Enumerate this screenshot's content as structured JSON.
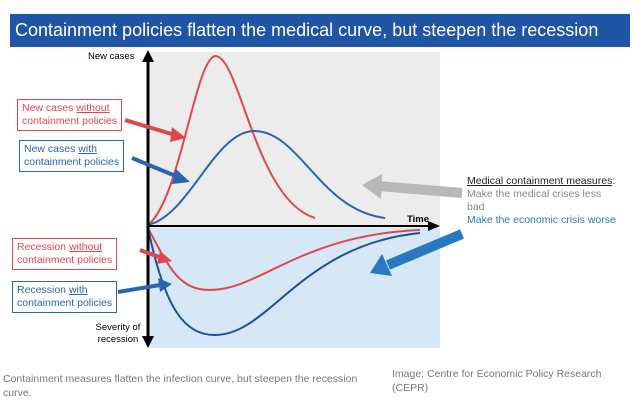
{
  "title": "Containment policies flatten the medical curve, but steepen the recession curve",
  "axes": {
    "y_top": "New cases",
    "x": "Time",
    "y_bottom": "Severity of recession"
  },
  "labels": {
    "new_no": {
      "a": "New cases ",
      "u": "without",
      "b": "containment policies"
    },
    "new_with": {
      "a": "New cases ",
      "u": "with",
      "b": "containment policies"
    },
    "rec_no": {
      "a": "Recession ",
      "u": "without",
      "b": "containment policies"
    },
    "rec_with": {
      "a": "Recession ",
      "u": "with",
      "b": "containment policies"
    }
  },
  "side": {
    "heading": "Medical containment measures",
    "colon": ":",
    "medical": "Make the medical crises less bad",
    "economic": "Make the economic crisis worse"
  },
  "caption": "Containment measures flatten the infection curve, but steepen the recession curve.",
  "credit": "Image: Centre for Economic Policy Research (CEPR)",
  "colors": {
    "red": "#e0474c",
    "blue": "#2a66b0",
    "title_bg": "#1f55a5"
  }
}
